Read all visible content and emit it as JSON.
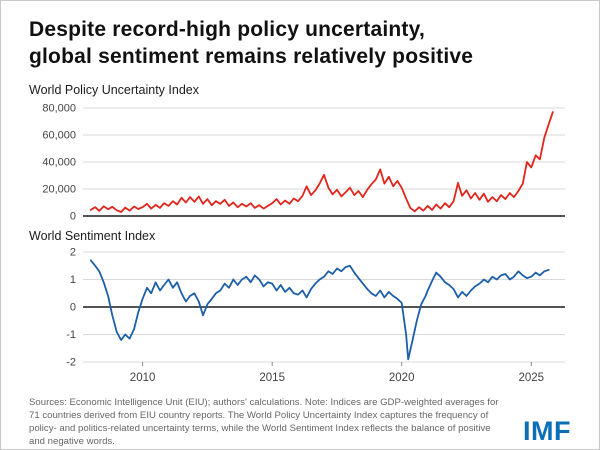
{
  "header": {
    "title_line1": "Despite record-high policy uncertainty,",
    "title_line2": "global sentiment remains relatively positive"
  },
  "colors": {
    "uncertainty_line": "#e0261c",
    "sentiment_line": "#1c5fa8",
    "grid": "#d9d9d9",
    "axis": "#1a1a1a",
    "tick_text": "#444444",
    "logo_blue": "#0b6fb8"
  },
  "chart_data": [
    {
      "type": "line",
      "title": "World Policy Uncertainty Index",
      "xlim": [
        2007.7,
        2026.3
      ],
      "ylim": [
        0,
        80000
      ],
      "yticks": [
        0,
        20000,
        40000,
        60000,
        80000
      ],
      "ytick_labels": [
        "0",
        "20,000",
        "40,000",
        "60,000",
        "80,000"
      ],
      "xticks": [
        2010,
        2015,
        2020,
        2025
      ],
      "xtick_labels": [
        "2010",
        "2015",
        "2020",
        "2025"
      ],
      "show_x_labels": false,
      "grid": true,
      "legend": "none",
      "series": [
        {
          "name": "World Policy Uncertainty Index",
          "color": "#e0261c",
          "points": [
            [
              2008.0,
              4500
            ],
            [
              2008.17,
              6500
            ],
            [
              2008.33,
              3800
            ],
            [
              2008.5,
              7200
            ],
            [
              2008.67,
              5000
            ],
            [
              2008.83,
              6800
            ],
            [
              2009.0,
              4200
            ],
            [
              2009.17,
              3000
            ],
            [
              2009.33,
              6200
            ],
            [
              2009.5,
              4000
            ],
            [
              2009.67,
              7000
            ],
            [
              2009.83,
              5200
            ],
            [
              2010.0,
              6500
            ],
            [
              2010.17,
              9000
            ],
            [
              2010.33,
              5500
            ],
            [
              2010.5,
              8200
            ],
            [
              2010.67,
              6000
            ],
            [
              2010.83,
              9500
            ],
            [
              2011.0,
              7500
            ],
            [
              2011.17,
              11000
            ],
            [
              2011.33,
              8500
            ],
            [
              2011.5,
              13500
            ],
            [
              2011.67,
              10000
            ],
            [
              2011.83,
              14000
            ],
            [
              2012.0,
              10500
            ],
            [
              2012.17,
              14500
            ],
            [
              2012.33,
              9000
            ],
            [
              2012.5,
              12500
            ],
            [
              2012.67,
              8000
            ],
            [
              2012.83,
              11000
            ],
            [
              2013.0,
              9000
            ],
            [
              2013.17,
              12000
            ],
            [
              2013.33,
              7500
            ],
            [
              2013.5,
              10000
            ],
            [
              2013.67,
              6500
            ],
            [
              2013.83,
              9000
            ],
            [
              2014.0,
              7000
            ],
            [
              2014.17,
              9500
            ],
            [
              2014.33,
              6000
            ],
            [
              2014.5,
              8000
            ],
            [
              2014.67,
              5500
            ],
            [
              2014.83,
              7500
            ],
            [
              2015.0,
              9500
            ],
            [
              2015.17,
              12500
            ],
            [
              2015.33,
              8500
            ],
            [
              2015.5,
              11500
            ],
            [
              2015.67,
              9000
            ],
            [
              2015.83,
              13000
            ],
            [
              2016.0,
              11000
            ],
            [
              2016.17,
              15000
            ],
            [
              2016.33,
              22000
            ],
            [
              2016.5,
              15500
            ],
            [
              2016.67,
              19000
            ],
            [
              2016.83,
              24000
            ],
            [
              2017.0,
              30500
            ],
            [
              2017.17,
              21000
            ],
            [
              2017.33,
              16000
            ],
            [
              2017.5,
              19500
            ],
            [
              2017.67,
              14500
            ],
            [
              2017.83,
              17500
            ],
            [
              2018.0,
              21000
            ],
            [
              2018.17,
              15500
            ],
            [
              2018.33,
              18500
            ],
            [
              2018.5,
              14000
            ],
            [
              2018.67,
              19500
            ],
            [
              2018.83,
              23500
            ],
            [
              2019.0,
              27000
            ],
            [
              2019.17,
              34500
            ],
            [
              2019.33,
              24000
            ],
            [
              2019.5,
              29000
            ],
            [
              2019.67,
              22000
            ],
            [
              2019.83,
              26000
            ],
            [
              2020.0,
              21000
            ],
            [
              2020.17,
              13000
            ],
            [
              2020.33,
              6000
            ],
            [
              2020.5,
              3500
            ],
            [
              2020.67,
              6500
            ],
            [
              2020.83,
              4000
            ],
            [
              2021.0,
              7500
            ],
            [
              2021.17,
              4500
            ],
            [
              2021.33,
              8500
            ],
            [
              2021.5,
              5500
            ],
            [
              2021.67,
              9500
            ],
            [
              2021.83,
              6500
            ],
            [
              2022.0,
              11000
            ],
            [
              2022.17,
              24500
            ],
            [
              2022.33,
              15000
            ],
            [
              2022.5,
              19000
            ],
            [
              2022.67,
              13000
            ],
            [
              2022.83,
              17000
            ],
            [
              2023.0,
              12000
            ],
            [
              2023.17,
              16500
            ],
            [
              2023.33,
              10500
            ],
            [
              2023.5,
              14000
            ],
            [
              2023.67,
              11000
            ],
            [
              2023.83,
              15500
            ],
            [
              2024.0,
              12500
            ],
            [
              2024.17,
              17000
            ],
            [
              2024.33,
              14000
            ],
            [
              2024.5,
              18500
            ],
            [
              2024.67,
              24000
            ],
            [
              2024.83,
              40000
            ],
            [
              2025.0,
              36000
            ],
            [
              2025.17,
              45000
            ],
            [
              2025.33,
              42000
            ],
            [
              2025.5,
              58000
            ],
            [
              2025.67,
              68000
            ],
            [
              2025.83,
              77000
            ]
          ]
        }
      ]
    },
    {
      "type": "line",
      "title": "World Sentiment Index",
      "xlim": [
        2007.7,
        2026.3
      ],
      "ylim": [
        -2,
        2
      ],
      "yticks": [
        2,
        1,
        0,
        -1,
        -2
      ],
      "ytick_labels": [
        "2",
        "1",
        "0",
        "-1",
        "-2"
      ],
      "xticks": [
        2010,
        2015,
        2020,
        2025
      ],
      "xtick_labels": [
        "2010",
        "2015",
        "2020",
        "2025"
      ],
      "show_x_labels": true,
      "grid": true,
      "legend": "none",
      "series": [
        {
          "name": "World Sentiment Index",
          "color": "#1c5fa8",
          "points": [
            [
              2008.0,
              1.7
            ],
            [
              2008.17,
              1.5
            ],
            [
              2008.33,
              1.3
            ],
            [
              2008.5,
              0.9
            ],
            [
              2008.67,
              0.4
            ],
            [
              2008.83,
              -0.3
            ],
            [
              2009.0,
              -0.9
            ],
            [
              2009.17,
              -1.2
            ],
            [
              2009.33,
              -1.0
            ],
            [
              2009.5,
              -1.15
            ],
            [
              2009.67,
              -0.8
            ],
            [
              2009.83,
              -0.2
            ],
            [
              2010.0,
              0.3
            ],
            [
              2010.17,
              0.7
            ],
            [
              2010.33,
              0.5
            ],
            [
              2010.5,
              0.9
            ],
            [
              2010.67,
              0.6
            ],
            [
              2010.83,
              0.8
            ],
            [
              2011.0,
              1.0
            ],
            [
              2011.17,
              0.7
            ],
            [
              2011.33,
              0.9
            ],
            [
              2011.5,
              0.5
            ],
            [
              2011.67,
              0.2
            ],
            [
              2011.83,
              0.4
            ],
            [
              2012.0,
              0.5
            ],
            [
              2012.17,
              0.2
            ],
            [
              2012.33,
              -0.3
            ],
            [
              2012.5,
              0.1
            ],
            [
              2012.67,
              0.3
            ],
            [
              2012.83,
              0.5
            ],
            [
              2013.0,
              0.6
            ],
            [
              2013.17,
              0.85
            ],
            [
              2013.33,
              0.7
            ],
            [
              2013.5,
              1.0
            ],
            [
              2013.67,
              0.8
            ],
            [
              2013.83,
              1.0
            ],
            [
              2014.0,
              1.1
            ],
            [
              2014.17,
              0.9
            ],
            [
              2014.33,
              1.15
            ],
            [
              2014.5,
              1.0
            ],
            [
              2014.67,
              0.75
            ],
            [
              2014.83,
              0.9
            ],
            [
              2015.0,
              0.85
            ],
            [
              2015.17,
              0.6
            ],
            [
              2015.33,
              0.8
            ],
            [
              2015.5,
              0.55
            ],
            [
              2015.67,
              0.7
            ],
            [
              2015.83,
              0.5
            ],
            [
              2016.0,
              0.45
            ],
            [
              2016.17,
              0.6
            ],
            [
              2016.33,
              0.35
            ],
            [
              2016.5,
              0.65
            ],
            [
              2016.67,
              0.85
            ],
            [
              2016.83,
              1.0
            ],
            [
              2017.0,
              1.1
            ],
            [
              2017.17,
              1.3
            ],
            [
              2017.33,
              1.2
            ],
            [
              2017.5,
              1.4
            ],
            [
              2017.67,
              1.3
            ],
            [
              2017.83,
              1.45
            ],
            [
              2018.0,
              1.5
            ],
            [
              2018.17,
              1.25
            ],
            [
              2018.33,
              1.05
            ],
            [
              2018.5,
              0.85
            ],
            [
              2018.67,
              0.65
            ],
            [
              2018.83,
              0.5
            ],
            [
              2019.0,
              0.4
            ],
            [
              2019.17,
              0.6
            ],
            [
              2019.33,
              0.35
            ],
            [
              2019.5,
              0.55
            ],
            [
              2019.67,
              0.4
            ],
            [
              2019.83,
              0.3
            ],
            [
              2020.0,
              0.15
            ],
            [
              2020.17,
              -1.0
            ],
            [
              2020.25,
              -1.9
            ],
            [
              2020.42,
              -1.2
            ],
            [
              2020.58,
              -0.5
            ],
            [
              2020.75,
              0.1
            ],
            [
              2020.92,
              0.4
            ],
            [
              2021.0,
              0.6
            ],
            [
              2021.17,
              0.95
            ],
            [
              2021.33,
              1.25
            ],
            [
              2021.5,
              1.1
            ],
            [
              2021.67,
              0.9
            ],
            [
              2021.83,
              0.8
            ],
            [
              2022.0,
              0.65
            ],
            [
              2022.17,
              0.35
            ],
            [
              2022.33,
              0.55
            ],
            [
              2022.5,
              0.4
            ],
            [
              2022.67,
              0.6
            ],
            [
              2022.83,
              0.75
            ],
            [
              2023.0,
              0.85
            ],
            [
              2023.17,
              1.0
            ],
            [
              2023.33,
              0.9
            ],
            [
              2023.5,
              1.1
            ],
            [
              2023.67,
              1.0
            ],
            [
              2023.83,
              1.15
            ],
            [
              2024.0,
              1.2
            ],
            [
              2024.17,
              1.0
            ],
            [
              2024.33,
              1.1
            ],
            [
              2024.5,
              1.3
            ],
            [
              2024.67,
              1.15
            ],
            [
              2024.83,
              1.05
            ],
            [
              2025.0,
              1.1
            ],
            [
              2025.17,
              1.25
            ],
            [
              2025.33,
              1.15
            ],
            [
              2025.5,
              1.3
            ],
            [
              2025.67,
              1.35
            ]
          ]
        }
      ]
    }
  ],
  "footer": {
    "sources": "Sources: Economic Intelligence Unit (EIU); authors' calculations. Note: Indices are GDP-weighted averages for 71 countries derived from EIU country reports. The World Policy Uncertainty Index captures the frequency of policy- and politics-related uncertainty terms, while the World Sentiment Index reflects the balance of positive and negative words.",
    "logo": "IMF"
  }
}
